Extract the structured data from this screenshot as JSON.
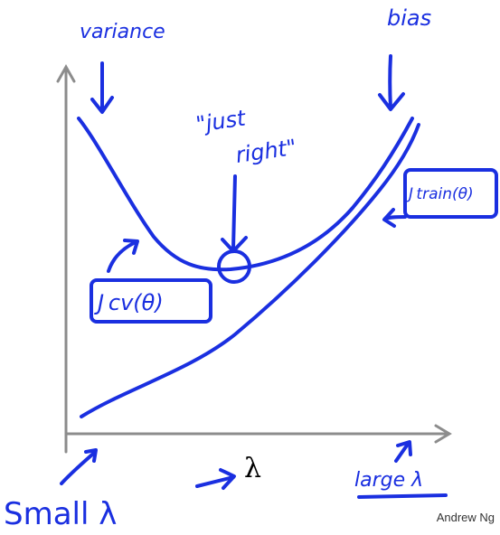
{
  "labels": {
    "variance": "variance",
    "bias": "bias",
    "just_right_line1": "\"just",
    "just_right_line2": "right\"",
    "j_cv": "J cv(θ)",
    "j_train": "J train(θ)",
    "small_lambda": "Small λ",
    "large_lambda": "large λ",
    "lambda": "λ"
  },
  "credit": "Andrew Ng",
  "colors": {
    "ink": "#1a2fe0",
    "axis": "#8c8c8c",
    "background": "#ffffff"
  }
}
